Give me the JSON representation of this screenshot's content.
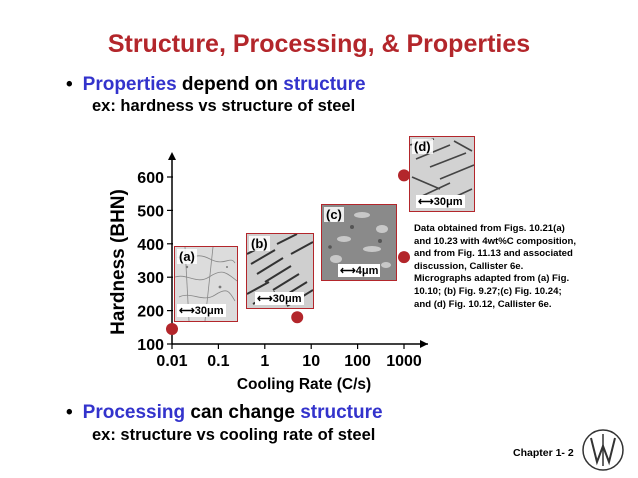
{
  "slide": {
    "title": "Structure, Processing, & Properties",
    "bullet1": {
      "dot": "•",
      "word1": "Properties",
      "mid": "depend on",
      "word2": "structure"
    },
    "sub1": "ex:  hardness vs structure of steel",
    "bullet2": {
      "dot": "•",
      "word1": "Processing",
      "mid": "can change",
      "word2": "structure"
    },
    "sub2": "ex:  structure vs cooling rate of steel",
    "note_lines": [
      "Data obtained from Figs. 10.21(a)",
      "and 10.23 with 4wt%C composition,",
      "and from Fig. 11.13 and associated",
      "discussion, Callister 6e.",
      "Micrographs adapted from (a) Fig.",
      "10.10; (b) Fig. 9.27;(c) Fig. 10.24;",
      "and (d) Fig. 10.12, Callister 6e."
    ],
    "footer": "Chapter 1- 2",
    "accent_color": "#b3262b",
    "blue_color": "#3333cc"
  },
  "micrographs": [
    {
      "label": "(a)",
      "scale": "30μm"
    },
    {
      "label": "(b)",
      "scale": "30μm"
    },
    {
      "label": "(c)",
      "scale": "4μm"
    },
    {
      "label": "(d)",
      "scale": "30μm"
    }
  ],
  "chart_data": {
    "type": "scatter",
    "xlabel": "Cooling Rate (C/s)",
    "ylabel": "Hardness (BHN)",
    "x_scale": "log",
    "xlim": [
      0.01,
      1000
    ],
    "ylim": [
      100,
      600
    ],
    "xticks": [
      "0.01",
      "0.1",
      "1",
      "10",
      "100",
      "1000"
    ],
    "yticks": [
      "100",
      "200",
      "300",
      "400",
      "500",
      "600"
    ],
    "points": [
      {
        "x": 0.01,
        "y": 145,
        "label": "(a)"
      },
      {
        "x": 5,
        "y": 180,
        "label": "(b)"
      },
      {
        "x": 1000,
        "y": 360,
        "label": "(c)"
      },
      {
        "x": 1000,
        "y": 605,
        "label": "(d)"
      }
    ],
    "marker_color": "#b3262b"
  }
}
